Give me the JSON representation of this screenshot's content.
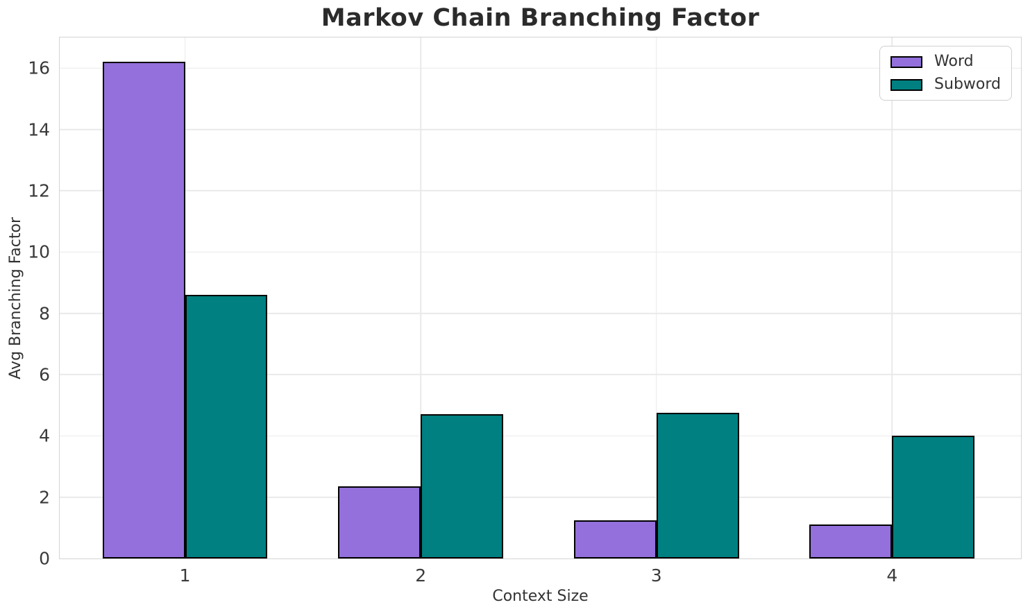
{
  "chart_data": {
    "type": "bar",
    "title": "Markov Chain Branching Factor",
    "categories": [
      "1",
      "2",
      "3",
      "4"
    ],
    "series": [
      {
        "name": "Word",
        "color": "#9370db",
        "values": [
          16.2,
          2.35,
          1.25,
          1.1
        ]
      },
      {
        "name": "Subword",
        "color": "#008080",
        "values": [
          8.6,
          4.7,
          4.75,
          4.0
        ]
      }
    ],
    "xlabel": "Context Size",
    "ylabel": "Avg Branching Factor",
    "ylim": [
      0,
      17
    ],
    "yticks": [
      0,
      2,
      4,
      6,
      8,
      10,
      12,
      14,
      16
    ],
    "bar_width": 0.35,
    "bar_edge_color": "#000000",
    "grid": true,
    "gridline_color": "#e9e9e9",
    "spine_color": "#d4d4d4",
    "background": "#ffffff",
    "title_color": "#2b2b2b",
    "legend_position": "upper right"
  }
}
